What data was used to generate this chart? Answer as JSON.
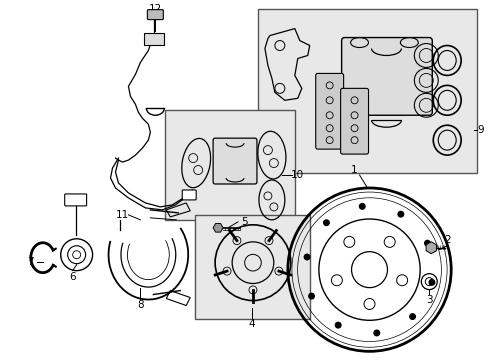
{
  "background_color": "#ffffff",
  "line_color": "#000000",
  "text_color": "#000000",
  "fig_width": 4.89,
  "fig_height": 3.6,
  "dpi": 100,
  "box_pad_color": "#e8e8e8",
  "box_caliper_color": "#e8e8e8"
}
